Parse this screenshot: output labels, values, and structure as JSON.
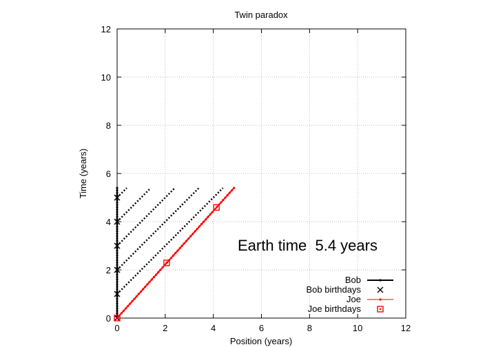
{
  "chart_data": {
    "type": "line",
    "title": "Twin paradox",
    "xlabel": "Position (years)",
    "ylabel": "Time (years)",
    "xlim": [
      0,
      12
    ],
    "ylim": [
      0,
      12
    ],
    "xticks": [
      0,
      2,
      4,
      6,
      8,
      10,
      12
    ],
    "yticks": [
      0,
      2,
      4,
      6,
      8,
      10,
      12
    ],
    "grid": true,
    "legend_position": "bottom-right",
    "annotation": "Earth time  5.4 years",
    "series": [
      {
        "name": "Bob",
        "kind": "line",
        "color": "#000000",
        "points": [
          [
            0,
            0
          ],
          [
            0,
            5.4
          ]
        ]
      },
      {
        "name": "Bob birthdays",
        "kind": "marker",
        "marker": "cross",
        "color": "#000000",
        "points": [
          [
            0,
            0
          ],
          [
            0,
            1
          ],
          [
            0,
            2
          ],
          [
            0,
            3
          ],
          [
            0,
            4
          ],
          [
            0,
            5
          ]
        ]
      },
      {
        "name": "Joe",
        "kind": "line",
        "color": "#ff0000",
        "points": [
          [
            0,
            0
          ],
          [
            4.86,
            5.4
          ]
        ]
      },
      {
        "name": "Joe birthdays",
        "kind": "marker",
        "marker": "square",
        "color": "#ff0000",
        "points": [
          [
            0,
            0
          ],
          [
            2.06,
            2.29
          ],
          [
            4.13,
            4.59
          ]
        ]
      }
    ],
    "light_signals": [
      {
        "from": [
          0,
          1
        ],
        "to": [
          4.4,
          5.4
        ]
      },
      {
        "from": [
          0,
          2
        ],
        "to": [
          3.4,
          5.4
        ]
      },
      {
        "from": [
          0,
          3
        ],
        "to": [
          2.4,
          5.4
        ]
      },
      {
        "from": [
          0,
          4
        ],
        "to": [
          1.4,
          5.4
        ]
      },
      {
        "from": [
          0,
          5
        ],
        "to": [
          0.4,
          5.4
        ]
      }
    ]
  }
}
